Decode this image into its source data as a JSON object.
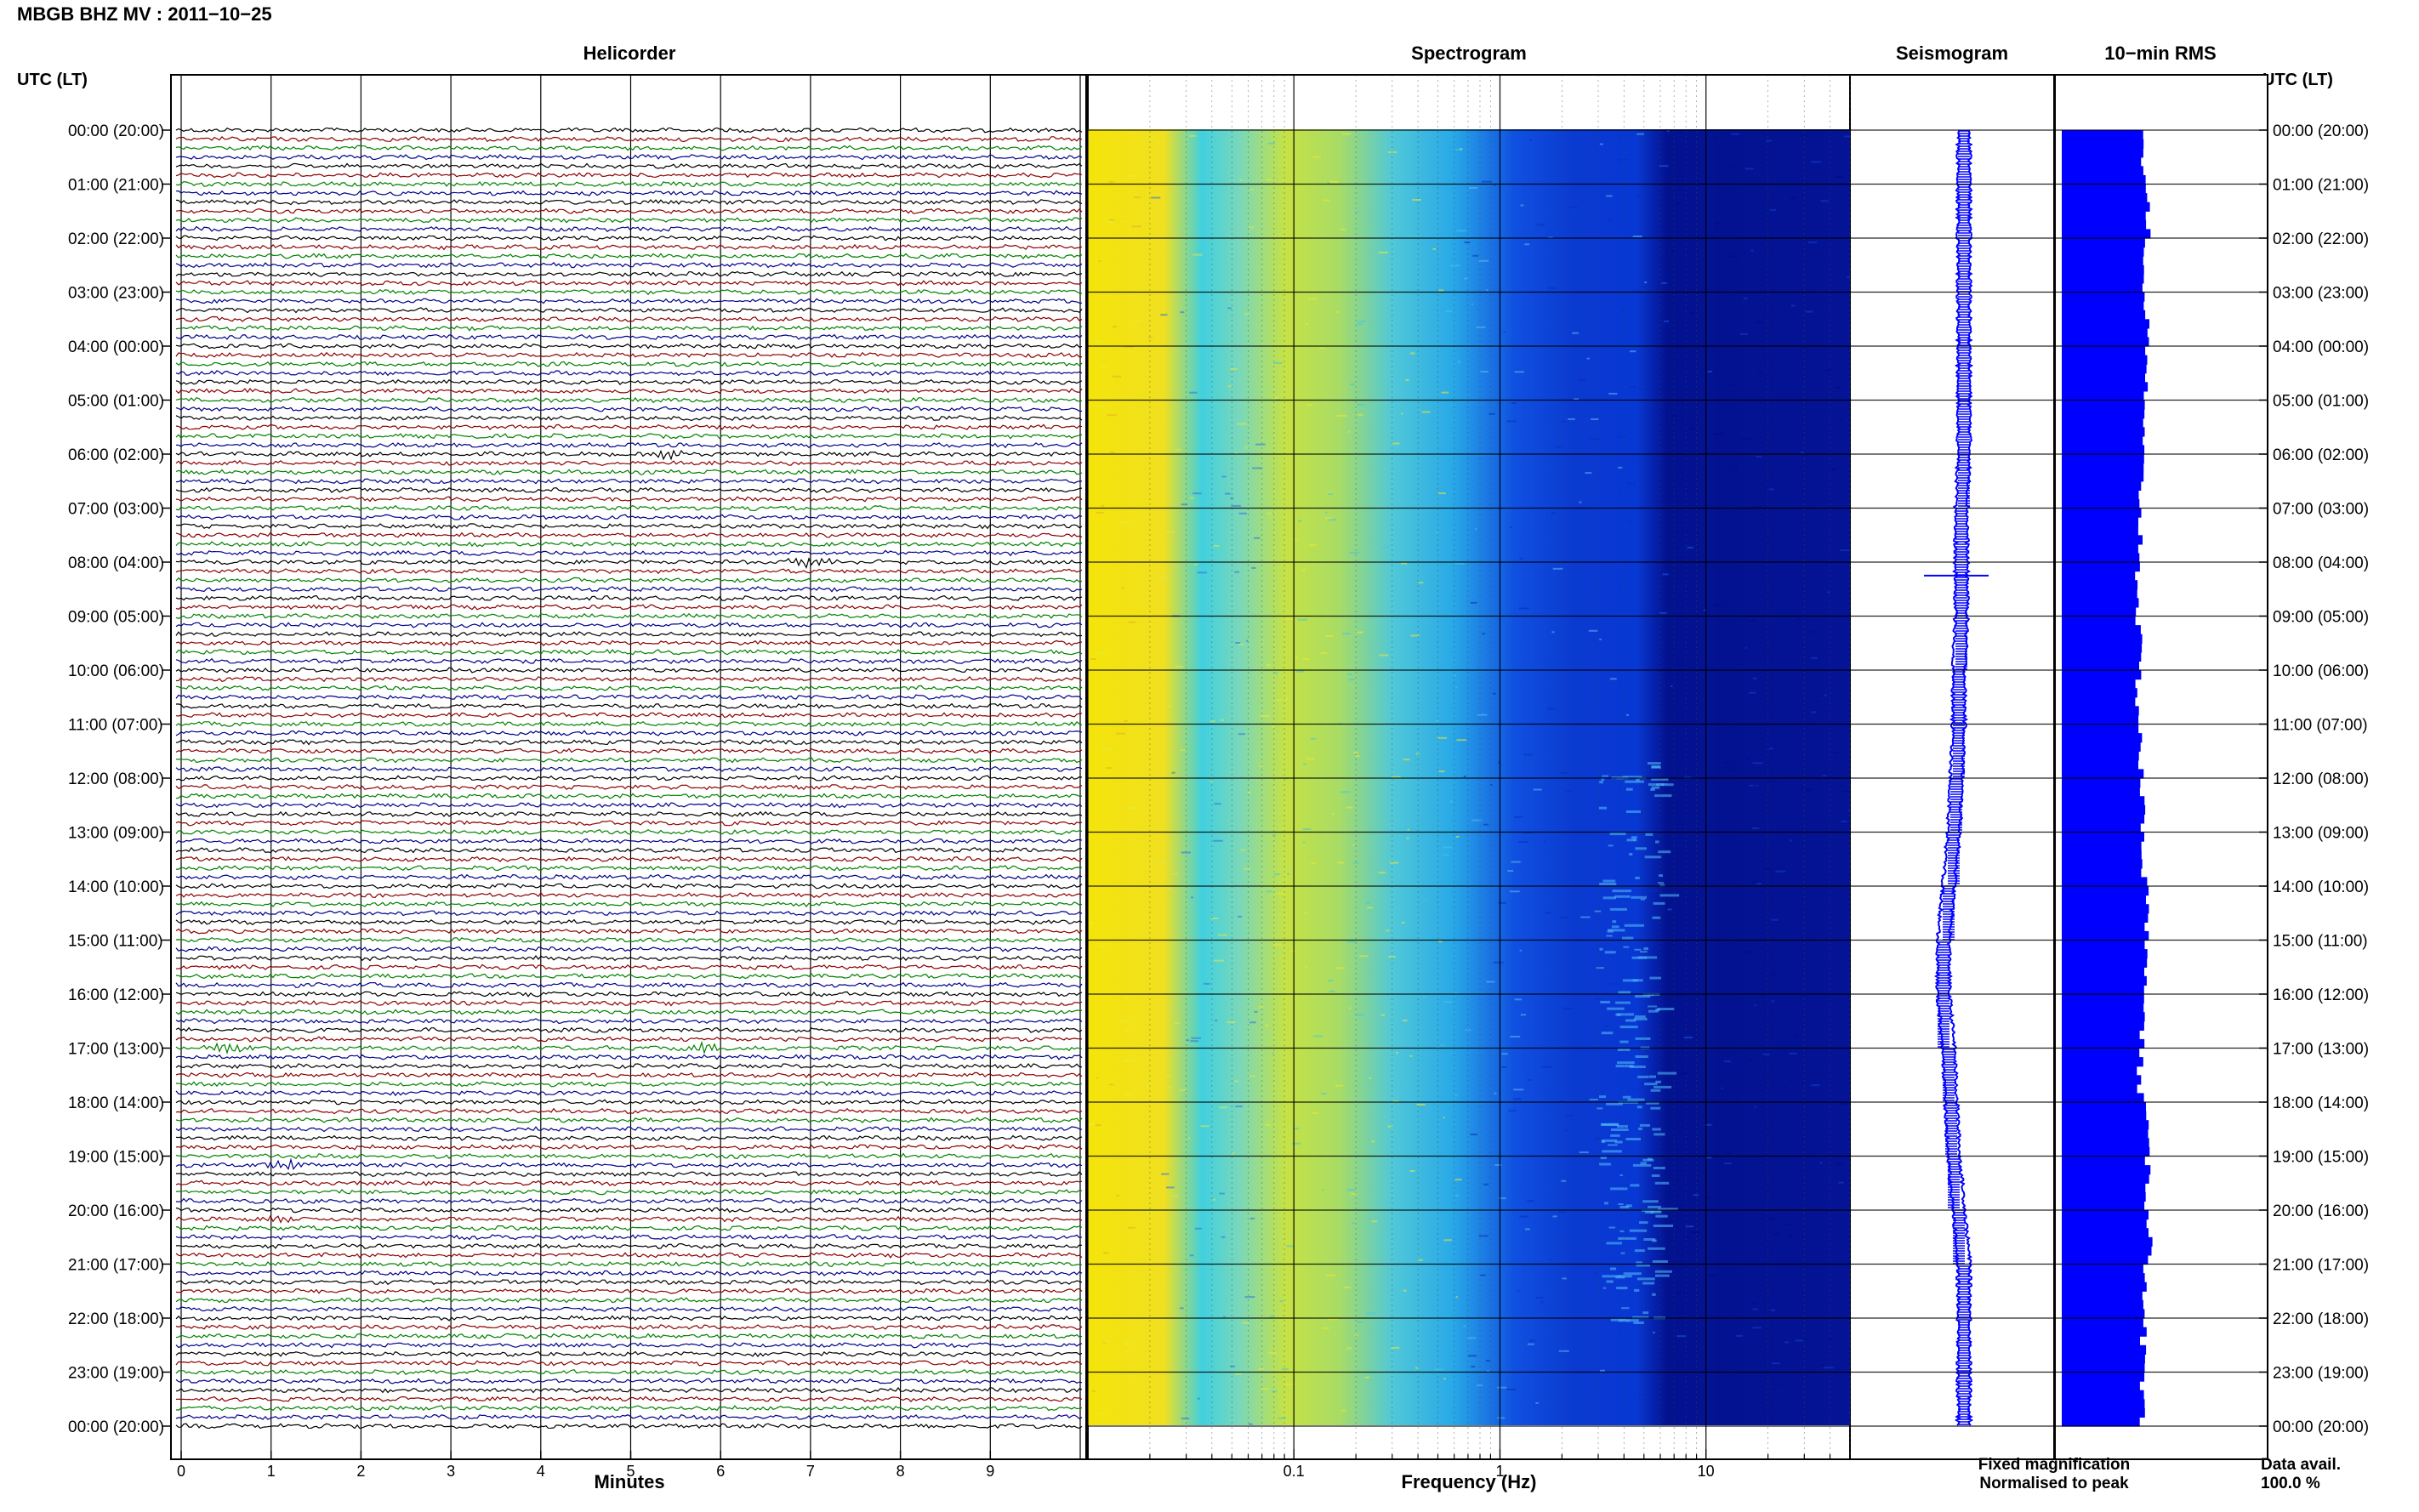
{
  "header": {
    "title": "MBGB BHZ MV : 2011−10−25",
    "left_axis_label": "UTC (LT)",
    "right_axis_label": "UTC (LT)"
  },
  "panels": {
    "helicorder": "Helicorder",
    "spectrogram": "Spectrogram",
    "seismogram": "Seismogram",
    "rms": "10−min RMS"
  },
  "footer": {
    "fixed_magnification": "Fixed magnification",
    "normalised_to_peak": "Normalised to peak",
    "data_avail_label": "Data avail.",
    "data_avail_value": "100.0 %"
  },
  "colors": {
    "trace_cycle": [
      "#000000",
      "#8b0000",
      "#008000",
      "#00008b"
    ],
    "seismogram": "#0000ff",
    "rms_bar": "#0000ff",
    "fixed_magnification": "#0000ff",
    "normalised_to_peak": "#ff0000",
    "spectro_low": "#f0e000",
    "spectro_mid": "#20d0e0",
    "spectro_high": "#0030c0",
    "spectro_max": "#000a90"
  },
  "chart_data": [
    {
      "type": "line",
      "name": "helicorder",
      "xlabel": "Minutes",
      "x_ticks": [
        0,
        1,
        2,
        3,
        4,
        5,
        6,
        7,
        8,
        9
      ],
      "xlim": [
        0,
        10
      ],
      "rows_per_hour": 6,
      "hours": 24,
      "events": [
        {
          "hour": 6,
          "row": 0,
          "minute": 5.4,
          "color": "#00008b",
          "amp": 1.0
        },
        {
          "hour": 8,
          "row": 0,
          "minute": 7.0,
          "color": "#8b0000",
          "amp": 1.0
        },
        {
          "hour": 17,
          "row": 0,
          "minute": 0.5,
          "color": "#8b0000",
          "amp": 1.0
        },
        {
          "hour": 17,
          "row": 0,
          "minute": 5.8,
          "color": "#8b0000",
          "amp": 0.8
        },
        {
          "hour": 19,
          "row": 1,
          "minute": 1.2,
          "color": "#000000",
          "amp": 1.0
        },
        {
          "hour": 20,
          "row": 1,
          "minute": 1.0,
          "color": "#008000",
          "amp": 0.7
        }
      ]
    },
    {
      "type": "heatmap",
      "name": "spectrogram",
      "xlabel": "Frequency (Hz)",
      "x_scale": "log",
      "xlim": [
        0.01,
        50
      ],
      "x_tick_labels": [
        "0.1",
        "1",
        "10"
      ]
    },
    {
      "type": "line",
      "name": "seismogram",
      "hours": 24,
      "baseline_offset": [
        0.0,
        0.0,
        0.0,
        0.0,
        0.0,
        0.0,
        0.0,
        -0.1,
        -0.1,
        -0.1,
        -0.2,
        -0.2,
        -0.3,
        -0.4,
        -0.6,
        -0.8,
        -0.8,
        -0.6,
        -0.5,
        -0.4,
        -0.2,
        0.0,
        0.0,
        0.0,
        0.0
      ],
      "spike_hour": 8.25
    },
    {
      "type": "bar",
      "name": "rms",
      "intervals_per_hour": 6,
      "hourly_level": [
        0.88,
        0.93,
        0.88,
        0.9,
        0.9,
        0.86,
        0.85,
        0.84,
        0.82,
        0.82,
        0.82,
        0.84,
        0.86,
        0.88,
        0.9,
        0.92,
        0.86,
        0.84,
        0.9,
        0.92,
        0.94,
        0.9,
        0.87,
        0.85
      ]
    }
  ],
  "time_labels": [
    "00:00 (20:00)",
    "01:00 (21:00)",
    "02:00 (22:00)",
    "03:00 (23:00)",
    "04:00 (00:00)",
    "05:00 (01:00)",
    "06:00 (02:00)",
    "07:00 (03:00)",
    "08:00 (04:00)",
    "09:00 (05:00)",
    "10:00 (06:00)",
    "11:00 (07:00)",
    "12:00 (08:00)",
    "13:00 (09:00)",
    "14:00 (10:00)",
    "15:00 (11:00)",
    "16:00 (12:00)",
    "17:00 (13:00)",
    "18:00 (14:00)",
    "19:00 (15:00)",
    "20:00 (16:00)",
    "21:00 (17:00)",
    "22:00 (18:00)",
    "23:00 (19:00)",
    "00:00 (20:00)"
  ]
}
